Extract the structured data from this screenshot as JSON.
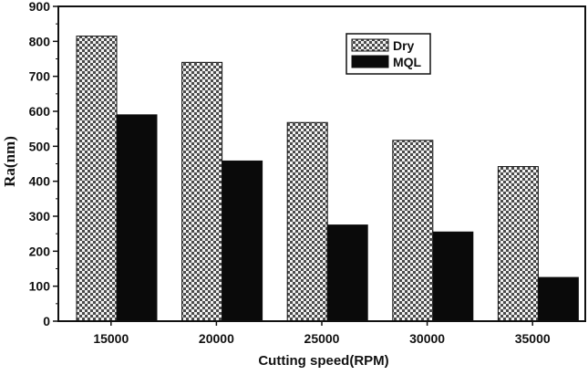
{
  "chart_data": {
    "type": "bar",
    "title": "",
    "xlabel": "Cutting speed(RPM)",
    "ylabel": "Ra(nm)",
    "categories": [
      "15000",
      "20000",
      "25000",
      "30000",
      "35000"
    ],
    "series": [
      {
        "name": "Dry",
        "values": [
          815,
          740,
          568,
          517,
          442
        ],
        "pattern": "checker",
        "color": "#555555"
      },
      {
        "name": "MQL",
        "values": [
          590,
          458,
          275,
          255,
          125
        ],
        "pattern": "solid",
        "color": "#0a0a0a"
      }
    ],
    "ylim": [
      0,
      900
    ],
    "yticks": [
      0,
      100,
      200,
      300,
      400,
      500,
      600,
      700,
      800,
      900
    ],
    "grid": false,
    "legend_position": "top-right"
  }
}
